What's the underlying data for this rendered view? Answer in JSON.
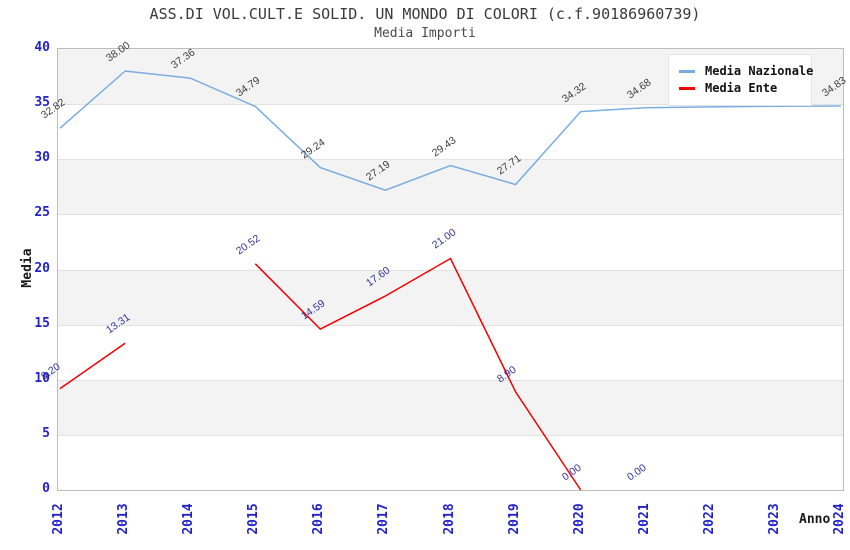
{
  "chart_data": {
    "type": "line",
    "title": "ASS.DI VOL.CULT.E SOLID. UN MONDO DI COLORI (c.f.90186960739)",
    "subtitle": "Media Importi",
    "xlabel": "Anno",
    "ylabel": "Media",
    "ylim": [
      0,
      40
    ],
    "ytick_step": 5,
    "categories": [
      "2012",
      "2013",
      "2014",
      "2015",
      "2016",
      "2017",
      "2018",
      "2019",
      "2020",
      "2021",
      "2022",
      "2023",
      "2024"
    ],
    "grid": "horizontal",
    "band_colors": [
      "#f3f3f3",
      "#ffffff"
    ],
    "axis_tick_color": "#2222cc",
    "legend": {
      "position": "top-right",
      "items": [
        {
          "label": "Media Nazionale",
          "color": "#7aade1"
        },
        {
          "label": "Media Ente",
          "color": "#f50000"
        }
      ]
    },
    "series": [
      {
        "name": "Media Nazionale",
        "color": "#7aade1",
        "label_color": "#3c3c3c",
        "points": [
          {
            "x": "2012",
            "y": 32.82,
            "label": "32.82"
          },
          {
            "x": "2013",
            "y": 38.0,
            "label": "38.00"
          },
          {
            "x": "2014",
            "y": 37.36,
            "label": "37.36"
          },
          {
            "x": "2015",
            "y": 34.79,
            "label": "34.79"
          },
          {
            "x": "2016",
            "y": 29.24,
            "label": "29.24"
          },
          {
            "x": "2017",
            "y": 27.19,
            "label": "27.19"
          },
          {
            "x": "2018",
            "y": 29.43,
            "label": "29.43"
          },
          {
            "x": "2019",
            "y": 27.71,
            "label": "27.71"
          },
          {
            "x": "2020",
            "y": 34.32,
            "label": "34.32"
          },
          {
            "x": "2021",
            "y": 34.68,
            "label": "34.68"
          },
          {
            "x": "2022",
            "y": 34.75,
            "label": "",
            "label_visible": false
          },
          {
            "x": "2023",
            "y": 34.8,
            "label": "",
            "label_visible": false
          },
          {
            "x": "2024",
            "y": 34.83,
            "label": "34.83"
          }
        ]
      },
      {
        "name": "Media Ente",
        "color": "#f50000",
        "label_color": "#333399",
        "points": [
          {
            "x": "2012",
            "y": 9.2,
            "label": "9.20"
          },
          {
            "x": "2013",
            "y": 13.31,
            "label": "13.31"
          },
          {
            "x": "2014",
            "y": null
          },
          {
            "x": "2015",
            "y": 20.52,
            "label": "20.52"
          },
          {
            "x": "2016",
            "y": 14.59,
            "label": "14.59"
          },
          {
            "x": "2017",
            "y": 17.6,
            "label": "17.60"
          },
          {
            "x": "2018",
            "y": 21.0,
            "label": "21.00"
          },
          {
            "x": "2019",
            "y": 8.9,
            "label": "8.90"
          },
          {
            "x": "2020",
            "y": 0.0,
            "label": "0.00"
          },
          {
            "x": "2021",
            "y": 0.0,
            "label": "0.00",
            "in_line": false
          },
          {
            "x": "2022",
            "y": null
          },
          {
            "x": "2023",
            "y": null
          },
          {
            "x": "2024",
            "y": null
          }
        ]
      }
    ]
  }
}
